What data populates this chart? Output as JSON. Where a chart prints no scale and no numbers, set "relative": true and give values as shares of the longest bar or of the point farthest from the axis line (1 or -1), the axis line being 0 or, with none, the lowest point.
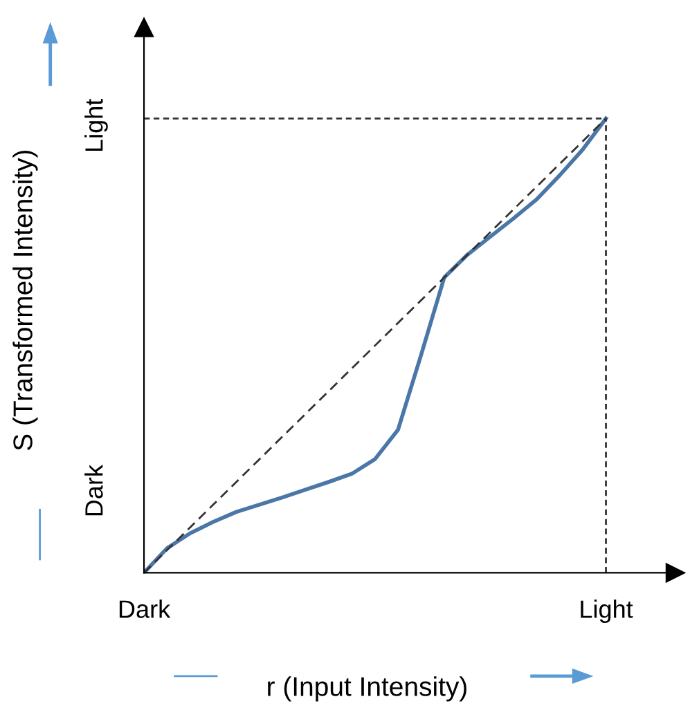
{
  "chart_data": {
    "type": "line",
    "relative": true,
    "xlabel": "r (Input Intensity)",
    "ylabel": "S (Transformed Intensity)",
    "annotations": [
      "Dark",
      "Light"
    ],
    "categories": [
      "Dark",
      null,
      null,
      null,
      null,
      null,
      null,
      null,
      null,
      null,
      null,
      null,
      null,
      null,
      null,
      null,
      null,
      null,
      null,
      null,
      "Light"
    ],
    "legend": false,
    "ref_lines": [
      {
        "axis": "x",
        "value": "Light",
        "line_style": "dotted",
        "color": "#333333"
      },
      {
        "axis": "y",
        "value": 1,
        "line_style": "dotted",
        "color": "#333333"
      }
    ],
    "series": [
      {
        "color": "#4a76a8",
        "line_style": "solid",
        "values": [
          0,
          0.054,
          0.087,
          0.112,
          0.134,
          0.15,
          0.166,
          0.183,
          0.2,
          0.218,
          0.25,
          0.315,
          0.48,
          0.65,
          0.7,
          0.74,
          0.78,
          0.822,
          0.875,
          0.932,
          1
        ]
      },
      {
        "color": "#333333",
        "line_style": "dashed",
        "values": [
          0,
          0.05,
          0.1,
          0.15,
          0.2,
          0.25,
          0.3,
          0.35,
          0.4,
          0.45,
          0.5,
          0.55,
          0.6,
          0.65,
          0.7,
          0.75,
          0.8,
          0.85,
          0.9,
          0.95,
          1
        ]
      }
    ]
  }
}
